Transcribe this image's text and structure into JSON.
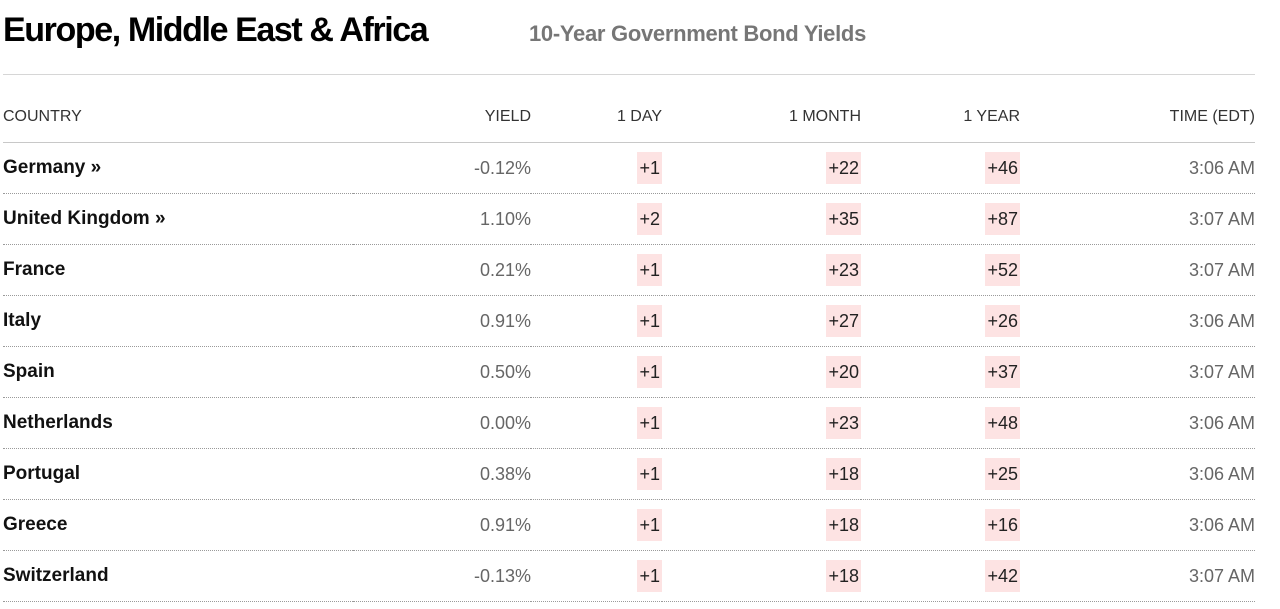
{
  "header": {
    "region_title": "Europe, Middle East & Africa",
    "subtitle": "10-Year Government Bond Yields"
  },
  "table": {
    "columns": {
      "country": "COUNTRY",
      "yield": "YIELD",
      "day": "1 DAY",
      "month": "1 MONTH",
      "year": "1 YEAR",
      "time": "TIME (EDT)"
    },
    "rows": [
      {
        "country": "Germany »",
        "yield": "-0.12%",
        "day": "+1",
        "month": "+22",
        "year": "+46",
        "time": "3:06 AM"
      },
      {
        "country": "United Kingdom »",
        "yield": "1.10%",
        "day": "+2",
        "month": "+35",
        "year": "+87",
        "time": "3:07 AM"
      },
      {
        "country": "France",
        "yield": "0.21%",
        "day": "+1",
        "month": "+23",
        "year": "+52",
        "time": "3:07 AM"
      },
      {
        "country": "Italy",
        "yield": "0.91%",
        "day": "+1",
        "month": "+27",
        "year": "+26",
        "time": "3:06 AM"
      },
      {
        "country": "Spain",
        "yield": "0.50%",
        "day": "+1",
        "month": "+20",
        "year": "+37",
        "time": "3:07 AM"
      },
      {
        "country": "Netherlands",
        "yield": "0.00%",
        "day": "+1",
        "month": "+23",
        "year": "+48",
        "time": "3:06 AM"
      },
      {
        "country": "Portugal",
        "yield": "0.38%",
        "day": "+1",
        "month": "+18",
        "year": "+25",
        "time": "3:06 AM"
      },
      {
        "country": "Greece",
        "yield": "0.91%",
        "day": "+1",
        "month": "+18",
        "year": "+16",
        "time": "3:06 AM"
      },
      {
        "country": "Switzerland",
        "yield": "-0.13%",
        "day": "+1",
        "month": "+18",
        "year": "+42",
        "time": "3:07 AM"
      }
    ]
  },
  "colors": {
    "change_highlight": "#fde3e3",
    "muted_text": "#666666",
    "subtitle_text": "#767676"
  }
}
